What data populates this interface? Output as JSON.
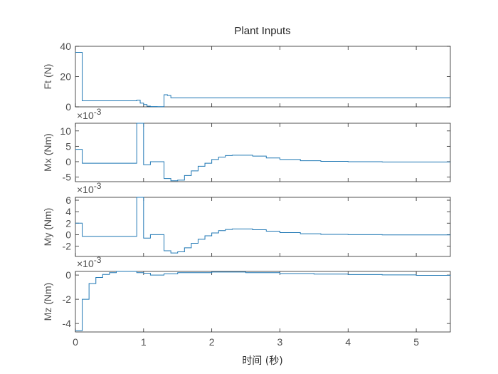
{
  "chart_data": {
    "type": "line",
    "title": "Plant Inputs",
    "xlabel": "时间 (秒)",
    "xlim": [
      0,
      5.5
    ],
    "xticks": [
      0,
      1,
      2,
      3,
      4,
      5
    ],
    "subplots": [
      {
        "name": "Ft",
        "ylabel": "Ft (N)",
        "ylim": [
          0,
          40
        ],
        "yticks": [
          0,
          20,
          40
        ],
        "exponent_label": "",
        "series": [
          {
            "step": true,
            "x": [
              0,
              0.1,
              0.9,
              0.95,
              1.0,
              1.05,
              1.1,
              1.2,
              1.3,
              1.35,
              1.4,
              5.5
            ],
            "y": [
              36,
              4,
              4.5,
              2.5,
              1.5,
              0.5,
              0.2,
              0.1,
              8,
              7.5,
              6,
              6
            ]
          }
        ]
      },
      {
        "name": "Mx",
        "ylabel": "Mx (Nm)",
        "ylim": [
          -6.5,
          12.5
        ],
        "yticks": [
          -5,
          0,
          5,
          10
        ],
        "exponent_label": "×10",
        "exponent_sup": "-3",
        "series": [
          {
            "step": true,
            "x": [
              0,
              0.1,
              0.9,
              1.0,
              1.1,
              1.2,
              1.3,
              1.4,
              1.5,
              1.6,
              1.7,
              1.8,
              1.9,
              2.0,
              2.1,
              2.2,
              2.3,
              2.4,
              2.6,
              2.8,
              3.0,
              3.3,
              3.6,
              4.0,
              4.5,
              5.0,
              5.5
            ],
            "y": [
              4,
              -0.5,
              12.5,
              -1,
              0,
              0,
              -5.5,
              -6.2,
              -6,
              -4.5,
              -3,
              -1.5,
              -0.5,
              0.7,
              1.5,
              2.0,
              2.1,
              2.1,
              1.8,
              1.2,
              0.7,
              0.3,
              0.1,
              0,
              -0.1,
              -0.1,
              -0.1
            ]
          }
        ]
      },
      {
        "name": "My",
        "ylabel": "My (Nm)",
        "ylim": [
          -3.8,
          6.5
        ],
        "yticks": [
          -2,
          0,
          2,
          4,
          6
        ],
        "exponent_label": "×10",
        "exponent_sup": "-3",
        "series": [
          {
            "step": true,
            "x": [
              0,
              0.1,
              0.9,
              1.0,
              1.1,
              1.2,
              1.3,
              1.4,
              1.5,
              1.6,
              1.7,
              1.8,
              1.9,
              2.0,
              2.1,
              2.2,
              2.3,
              2.4,
              2.6,
              2.8,
              3.0,
              3.3,
              3.6,
              4.0,
              4.5,
              5.0,
              5.5
            ],
            "y": [
              2,
              -0.3,
              6.5,
              -0.6,
              0,
              0,
              -2.8,
              -3.2,
              -3.0,
              -2.3,
              -1.5,
              -0.8,
              -0.2,
              0.3,
              0.7,
              0.9,
              1.0,
              1.0,
              0.85,
              0.6,
              0.35,
              0.15,
              0.05,
              0,
              -0.05,
              -0.05,
              -0.05
            ]
          }
        ]
      },
      {
        "name": "Mz",
        "ylabel": "Mz (Nm)",
        "ylim": [
          -4.7,
          0.3
        ],
        "yticks": [
          -4,
          -2,
          0
        ],
        "exponent_label": "×10",
        "exponent_sup": "-3",
        "series": [
          {
            "step": true,
            "x": [
              0,
              0.1,
              0.2,
              0.3,
              0.4,
              0.5,
              0.6,
              0.9,
              1.0,
              1.1,
              1.3,
              1.5,
              2.0,
              2.5,
              3.0,
              3.5,
              4.0,
              4.5,
              5.0,
              5.5
            ],
            "y": [
              -4.6,
              -2.0,
              -0.7,
              -0.2,
              0.05,
              0.2,
              0.3,
              0.2,
              0.15,
              0.0,
              0.1,
              0.2,
              0.25,
              0.2,
              0.12,
              0.08,
              0.04,
              0.01,
              -0.02,
              -0.04
            ]
          }
        ]
      }
    ]
  }
}
